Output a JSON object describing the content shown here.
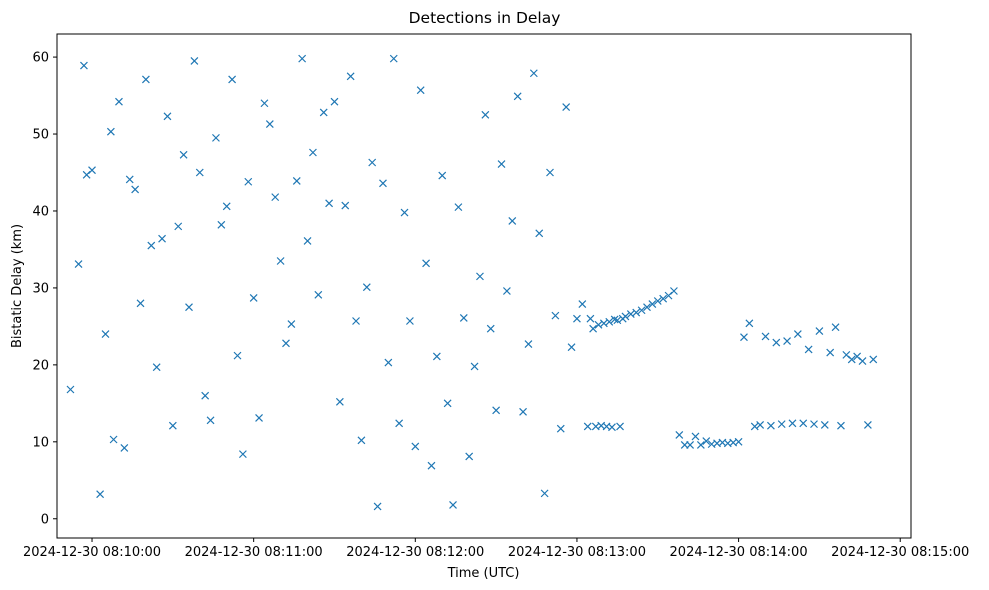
{
  "chart_data": {
    "type": "scatter",
    "title": "Detections in Delay",
    "xlabel": "Time (UTC)",
    "ylabel": "Bistatic Delay (km)",
    "xlim": [
      "2024-12-30 08:09:47",
      "2024-12-30 08:15:04"
    ],
    "ylim": [
      -2.5,
      63
    ],
    "x_ticks": [
      "2024-12-30 08:10:00",
      "2024-12-30 08:11:00",
      "2024-12-30 08:12:00",
      "2024-12-30 08:13:00",
      "2024-12-30 08:14:00",
      "2024-12-30 08:15:00"
    ],
    "y_ticks": [
      0,
      10,
      20,
      30,
      40,
      50,
      60
    ],
    "marker": "x",
    "color": "#1f77b4",
    "grid": false,
    "legend": "none",
    "series": [
      {
        "x": [
          "2024-12-30 08:09:52",
          "2024-12-30 08:09:55",
          "2024-12-30 08:09:57",
          "2024-12-30 08:09:58",
          "2024-12-30 08:10:00",
          "2024-12-30 08:10:03",
          "2024-12-30 08:10:05",
          "2024-12-30 08:10:07",
          "2024-12-30 08:10:08",
          "2024-12-30 08:10:10",
          "2024-12-30 08:10:12",
          "2024-12-30 08:10:14",
          "2024-12-30 08:10:16",
          "2024-12-30 08:10:18",
          "2024-12-30 08:10:20",
          "2024-12-30 08:10:22",
          "2024-12-30 08:10:24",
          "2024-12-30 08:10:26",
          "2024-12-30 08:10:28",
          "2024-12-30 08:10:30",
          "2024-12-30 08:10:32",
          "2024-12-30 08:10:34",
          "2024-12-30 08:10:36",
          "2024-12-30 08:10:38",
          "2024-12-30 08:10:40",
          "2024-12-30 08:10:42",
          "2024-12-30 08:10:44",
          "2024-12-30 08:10:46",
          "2024-12-30 08:10:48",
          "2024-12-30 08:10:50",
          "2024-12-30 08:10:52",
          "2024-12-30 08:10:54",
          "2024-12-30 08:10:56",
          "2024-12-30 08:10:58",
          "2024-12-30 08:11:00",
          "2024-12-30 08:11:02",
          "2024-12-30 08:11:04",
          "2024-12-30 08:11:06",
          "2024-12-30 08:11:08",
          "2024-12-30 08:11:10",
          "2024-12-30 08:11:12",
          "2024-12-30 08:11:14",
          "2024-12-30 08:11:16",
          "2024-12-30 08:11:18",
          "2024-12-30 08:11:20",
          "2024-12-30 08:11:22",
          "2024-12-30 08:11:24",
          "2024-12-30 08:11:26",
          "2024-12-30 08:11:28",
          "2024-12-30 08:11:30",
          "2024-12-30 08:11:32",
          "2024-12-30 08:11:34",
          "2024-12-30 08:11:36",
          "2024-12-30 08:11:38",
          "2024-12-30 08:11:40",
          "2024-12-30 08:11:42",
          "2024-12-30 08:11:44",
          "2024-12-30 08:11:46",
          "2024-12-30 08:11:48",
          "2024-12-30 08:11:50",
          "2024-12-30 08:11:52",
          "2024-12-30 08:11:54",
          "2024-12-30 08:11:56",
          "2024-12-30 08:11:58",
          "2024-12-30 08:12:00",
          "2024-12-30 08:12:02",
          "2024-12-30 08:12:04",
          "2024-12-30 08:12:06",
          "2024-12-30 08:12:08",
          "2024-12-30 08:12:10",
          "2024-12-30 08:12:12",
          "2024-12-30 08:12:14",
          "2024-12-30 08:12:16",
          "2024-12-30 08:12:18",
          "2024-12-30 08:12:20",
          "2024-12-30 08:12:22",
          "2024-12-30 08:12:24",
          "2024-12-30 08:12:26",
          "2024-12-30 08:12:28",
          "2024-12-30 08:12:30",
          "2024-12-30 08:12:32",
          "2024-12-30 08:12:34",
          "2024-12-30 08:12:36",
          "2024-12-30 08:12:38",
          "2024-12-30 08:12:40",
          "2024-12-30 08:12:42",
          "2024-12-30 08:12:44",
          "2024-12-30 08:12:46",
          "2024-12-30 08:12:48",
          "2024-12-30 08:12:50",
          "2024-12-30 08:12:52",
          "2024-12-30 08:12:54",
          "2024-12-30 08:12:56",
          "2024-12-30 08:12:58",
          "2024-12-30 08:13:00",
          "2024-12-30 08:13:02",
          "2024-12-30 08:13:04",
          "2024-12-30 08:13:05",
          "2024-12-30 08:13:06",
          "2024-12-30 08:13:07",
          "2024-12-30 08:13:08",
          "2024-12-30 08:13:09",
          "2024-12-30 08:13:10",
          "2024-12-30 08:13:11",
          "2024-12-30 08:13:12",
          "2024-12-30 08:13:13",
          "2024-12-30 08:13:14",
          "2024-12-30 08:13:15",
          "2024-12-30 08:13:16",
          "2024-12-30 08:13:17",
          "2024-12-30 08:13:18",
          "2024-12-30 08:13:20",
          "2024-12-30 08:13:22",
          "2024-12-30 08:13:24",
          "2024-12-30 08:13:26",
          "2024-12-30 08:13:28",
          "2024-12-30 08:13:30",
          "2024-12-30 08:13:32",
          "2024-12-30 08:13:34",
          "2024-12-30 08:13:36",
          "2024-12-30 08:13:38",
          "2024-12-30 08:13:40",
          "2024-12-30 08:13:42",
          "2024-12-30 08:13:44",
          "2024-12-30 08:13:46",
          "2024-12-30 08:13:48",
          "2024-12-30 08:13:50",
          "2024-12-30 08:13:52",
          "2024-12-30 08:13:54",
          "2024-12-30 08:13:56",
          "2024-12-30 08:13:58",
          "2024-12-30 08:14:00",
          "2024-12-30 08:14:02",
          "2024-12-30 08:14:04",
          "2024-12-30 08:14:06",
          "2024-12-30 08:14:08",
          "2024-12-30 08:14:10",
          "2024-12-30 08:14:12",
          "2024-12-30 08:14:14",
          "2024-12-30 08:14:16",
          "2024-12-30 08:14:18",
          "2024-12-30 08:14:20",
          "2024-12-30 08:14:22",
          "2024-12-30 08:14:24",
          "2024-12-30 08:14:26",
          "2024-12-30 08:14:28",
          "2024-12-30 08:14:30",
          "2024-12-30 08:14:32",
          "2024-12-30 08:14:34",
          "2024-12-30 08:14:36",
          "2024-12-30 08:14:38",
          "2024-12-30 08:14:40",
          "2024-12-30 08:14:42",
          "2024-12-30 08:14:44",
          "2024-12-30 08:14:46",
          "2024-12-30 08:14:48",
          "2024-12-30 08:14:50"
        ],
        "y": [
          16.8,
          33.1,
          58.9,
          44.7,
          45.3,
          3.2,
          24.0,
          50.3,
          10.3,
          54.2,
          9.2,
          44.1,
          42.8,
          28.0,
          57.1,
          35.5,
          19.7,
          36.4,
          52.3,
          12.1,
          38.0,
          47.3,
          27.5,
          59.5,
          45.0,
          16.0,
          12.8,
          49.5,
          38.2,
          40.6,
          57.1,
          21.2,
          8.4,
          43.8,
          28.7,
          13.1,
          54.0,
          51.3,
          41.8,
          33.5,
          22.8,
          25.3,
          43.9,
          59.8,
          36.1,
          47.6,
          29.1,
          52.8,
          41.0,
          54.2,
          15.2,
          40.7,
          57.5,
          25.7,
          10.2,
          30.1,
          46.3,
          1.6,
          43.6,
          20.3,
          59.8,
          12.4,
          39.8,
          25.7,
          9.4,
          55.7,
          33.2,
          6.9,
          21.1,
          44.6,
          15.0,
          1.8,
          40.5,
          26.1,
          8.1,
          19.8,
          31.5,
          52.5,
          24.7,
          14.1,
          46.1,
          29.6,
          38.7,
          54.9,
          13.9,
          22.7,
          57.9,
          37.1,
          3.3,
          45.0,
          26.4,
          11.7,
          53.5,
          22.3,
          26.0,
          27.9,
          12.0,
          26.0,
          24.7,
          12.0,
          25.2,
          12.1,
          25.4,
          12.0,
          25.6,
          11.9,
          25.9,
          25.8,
          12.0,
          26.0,
          26.3,
          26.6,
          26.8,
          27.1,
          27.5,
          27.9,
          28.3,
          28.6,
          29.0,
          29.6,
          10.9,
          9.6,
          9.6,
          10.7,
          9.6,
          10.1,
          9.7,
          9.8,
          9.9,
          9.8,
          9.9,
          10.0,
          23.6,
          25.4,
          12.0,
          12.2,
          23.7,
          12.1,
          22.9,
          12.3,
          23.1,
          12.4,
          24.0,
          12.4,
          22.0,
          12.3,
          24.4,
          12.2,
          21.6,
          24.9,
          12.1,
          21.3,
          20.7,
          21.1,
          20.5,
          12.2,
          20.7
        ]
      }
    ]
  }
}
